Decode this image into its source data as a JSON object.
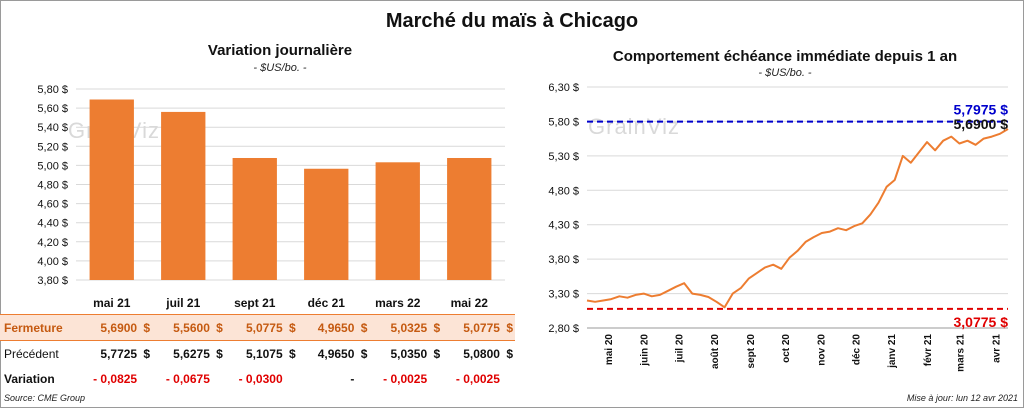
{
  "title": "Marché du maïs à Chicago",
  "left": {
    "title": "Variation journalière",
    "subtitle": "- $US/bo. -",
    "watermark": "GrainViz"
  },
  "right": {
    "title": "Comportement échéance immédiate depuis 1 an",
    "subtitle": "- $US/bo. -",
    "watermark": "GrainViz",
    "high_label": "5,7975 $",
    "last_label": "5,6900 $",
    "low_label": "3,0775 $"
  },
  "table": {
    "rows": [
      {
        "label": "Fermeture",
        "values": [
          "5,6900",
          "5,5600",
          "5,0775",
          "4,9650",
          "5,0325",
          "5,0775"
        ],
        "currency": "$"
      },
      {
        "label": "Précédent",
        "values": [
          "5,7725",
          "5,6275",
          "5,1075",
          "4,9650",
          "5,0350",
          "5,0800"
        ],
        "currency": "$"
      },
      {
        "label": "Variation",
        "values": [
          "- 0,0825",
          "- 0,0675",
          "- 0,0300",
          "-",
          "- 0,0025",
          "- 0,0025"
        ],
        "currency": ""
      }
    ]
  },
  "footer": {
    "source": "Source: CME Group",
    "update": "Mise à jour: lun 12 avr 2021"
  },
  "colors": {
    "bar": "#ed7d31",
    "line": "#ed7d31",
    "high": "#0000cc",
    "low": "#e00000",
    "grid": "#d9d9d9"
  },
  "chart_data": [
    {
      "type": "bar",
      "categories": [
        "mai 21",
        "juil 21",
        "sept 21",
        "déc 21",
        "mars 22",
        "mai 22"
      ],
      "values": [
        5.69,
        5.56,
        5.0775,
        4.965,
        5.0325,
        5.0775
      ],
      "ylim": [
        3.8,
        5.8
      ],
      "yticks": [
        "3,80 $",
        "4,00 $",
        "4,20 $",
        "4,40 $",
        "4,60 $",
        "4,80 $",
        "5,00 $",
        "5,20 $",
        "5,40 $",
        "5,60 $",
        "5,80 $"
      ],
      "grid": true
    },
    {
      "type": "line",
      "ylim": [
        2.8,
        6.3
      ],
      "yticks": [
        "2,80 $",
        "3,30 $",
        "3,80 $",
        "4,30 $",
        "4,80 $",
        "5,30 $",
        "5,80 $",
        "6,30 $"
      ],
      "xticks": [
        "mai 20",
        "juin 20",
        "juil 20",
        "août 20",
        "sept 20",
        "oct 20",
        "nov 20",
        "déc 20",
        "janv 21",
        "févr 21",
        "mars 21",
        "avr 21"
      ],
      "high": 5.7975,
      "low": 3.0775,
      "last": 5.69,
      "x": [
        "2020-04-13",
        "2020-04-20",
        "2020-04-27",
        "2020-05-04",
        "2020-05-11",
        "2020-05-18",
        "2020-05-25",
        "2020-06-01",
        "2020-06-08",
        "2020-06-15",
        "2020-06-22",
        "2020-06-29",
        "2020-07-06",
        "2020-07-13",
        "2020-07-20",
        "2020-07-27",
        "2020-08-03",
        "2020-08-10",
        "2020-08-17",
        "2020-08-24",
        "2020-08-31",
        "2020-09-07",
        "2020-09-14",
        "2020-09-21",
        "2020-09-28",
        "2020-10-05",
        "2020-10-12",
        "2020-10-19",
        "2020-10-26",
        "2020-11-02",
        "2020-11-09",
        "2020-11-16",
        "2020-11-23",
        "2020-11-30",
        "2020-12-07",
        "2020-12-14",
        "2020-12-21",
        "2020-12-28",
        "2021-01-04",
        "2021-01-11",
        "2021-01-18",
        "2021-01-25",
        "2021-02-01",
        "2021-02-08",
        "2021-02-15",
        "2021-02-22",
        "2021-03-01",
        "2021-03-08",
        "2021-03-15",
        "2021-03-22",
        "2021-03-29",
        "2021-04-05",
        "2021-04-12"
      ],
      "values": [
        3.2,
        3.18,
        3.2,
        3.22,
        3.26,
        3.24,
        3.28,
        3.3,
        3.26,
        3.28,
        3.34,
        3.4,
        3.45,
        3.3,
        3.28,
        3.25,
        3.18,
        3.1,
        3.3,
        3.38,
        3.52,
        3.6,
        3.68,
        3.72,
        3.66,
        3.82,
        3.92,
        4.05,
        4.12,
        4.18,
        4.2,
        4.25,
        4.22,
        4.28,
        4.32,
        4.45,
        4.62,
        4.85,
        4.95,
        5.3,
        5.2,
        5.35,
        5.5,
        5.38,
        5.52,
        5.58,
        5.48,
        5.52,
        5.46,
        5.55,
        5.58,
        5.62,
        5.69
      ]
    }
  ]
}
